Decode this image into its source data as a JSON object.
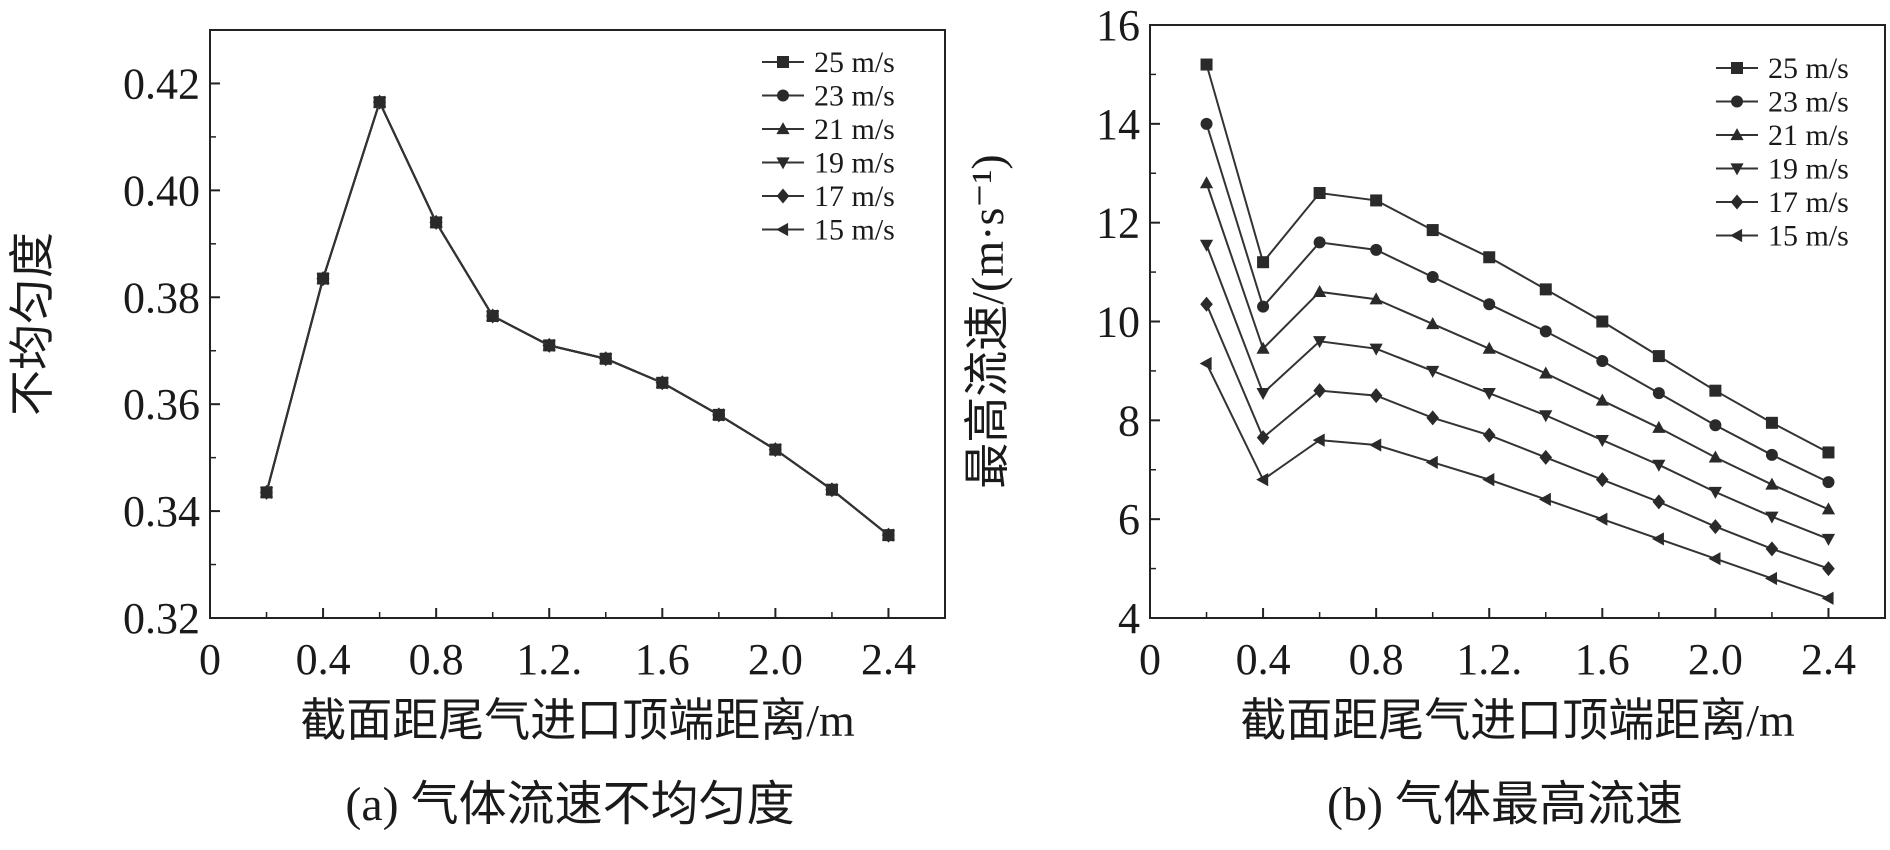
{
  "figure": {
    "caption_a": "(a) 气体流速不均匀度",
    "caption_b": "(b) 气体最高流速"
  },
  "chart_data": [
    {
      "type": "line",
      "id": "a",
      "xlabel": "截面距尾气进口顶端距离/m",
      "ylabel": "不均匀度",
      "xlim": [
        0,
        2.6
      ],
      "ylim": [
        0.32,
        0.43
      ],
      "xticks": [
        0,
        0.4,
        0.8,
        1.2,
        1.6,
        2.0,
        2.4
      ],
      "xtick_labels": [
        "0",
        "0.4",
        "0.8",
        "1.2.",
        "1.6",
        "2.0",
        "2.4"
      ],
      "yticks": [
        0.32,
        0.34,
        0.36,
        0.38,
        0.4,
        0.42
      ],
      "ytick_labels": [
        "0.32",
        "0.34",
        "0.36",
        "0.38",
        "0.40",
        "0.42"
      ],
      "grid": false,
      "legend_position": "top-right",
      "x": [
        0.2,
        0.4,
        0.6,
        0.8,
        1.0,
        1.2,
        1.4,
        1.6,
        1.8,
        2.0,
        2.2,
        2.4
      ],
      "series": [
        {
          "name": "25 m/s",
          "marker": "square",
          "values": [
            0.3435,
            0.3835,
            0.4165,
            0.394,
            0.3765,
            0.371,
            0.3685,
            0.364,
            0.358,
            0.3515,
            0.344,
            0.3355
          ]
        },
        {
          "name": "23 m/s",
          "marker": "circle",
          "values": [
            0.3435,
            0.3835,
            0.4165,
            0.394,
            0.3765,
            0.371,
            0.3685,
            0.364,
            0.358,
            0.3515,
            0.344,
            0.3355
          ]
        },
        {
          "name": "21 m/s",
          "marker": "triangle-up",
          "values": [
            0.3435,
            0.3835,
            0.4165,
            0.394,
            0.3765,
            0.371,
            0.3685,
            0.364,
            0.358,
            0.3515,
            0.344,
            0.3355
          ]
        },
        {
          "name": "19 m/s",
          "marker": "triangle-down",
          "values": [
            0.3435,
            0.3835,
            0.4165,
            0.394,
            0.3765,
            0.371,
            0.3685,
            0.364,
            0.358,
            0.3515,
            0.344,
            0.3355
          ]
        },
        {
          "name": "17 m/s",
          "marker": "diamond",
          "values": [
            0.3435,
            0.3835,
            0.4165,
            0.394,
            0.3765,
            0.371,
            0.3685,
            0.364,
            0.358,
            0.3515,
            0.344,
            0.3355
          ]
        },
        {
          "name": "15 m/s",
          "marker": "triangle-left",
          "values": [
            0.3435,
            0.3835,
            0.4165,
            0.394,
            0.3765,
            0.371,
            0.3685,
            0.364,
            0.358,
            0.3515,
            0.344,
            0.3355
          ]
        }
      ]
    },
    {
      "type": "line",
      "id": "b",
      "xlabel": "截面距尾气进口顶端距离/m",
      "ylabel": "最高流速/(m·s⁻¹)",
      "xlim": [
        0,
        2.6
      ],
      "ylim": [
        4,
        16
      ],
      "xticks": [
        0,
        0.4,
        0.8,
        1.2,
        1.6,
        2.0,
        2.4
      ],
      "xtick_labels": [
        "0",
        "0.4",
        "0.8",
        "1.2.",
        "1.6",
        "2.0",
        "2.4"
      ],
      "yticks": [
        4,
        6,
        8,
        10,
        12,
        14,
        16
      ],
      "ytick_labels": [
        "4",
        "6",
        "8",
        "10",
        "12",
        "14",
        "16"
      ],
      "grid": false,
      "legend_position": "top-right",
      "x": [
        0.2,
        0.4,
        0.6,
        0.8,
        1.0,
        1.2,
        1.4,
        1.6,
        1.8,
        2.0,
        2.2,
        2.4
      ],
      "series": [
        {
          "name": "25 m/s",
          "marker": "square",
          "values": [
            15.2,
            11.2,
            12.6,
            12.45,
            11.85,
            11.3,
            10.65,
            10.0,
            9.3,
            8.6,
            7.95,
            7.35
          ]
        },
        {
          "name": "23 m/s",
          "marker": "circle",
          "values": [
            14.0,
            10.3,
            11.6,
            11.45,
            10.9,
            10.35,
            9.8,
            9.2,
            8.55,
            7.9,
            7.3,
            6.75
          ]
        },
        {
          "name": "21 m/s",
          "marker": "triangle-up",
          "values": [
            12.8,
            9.45,
            10.6,
            10.45,
            9.95,
            9.45,
            8.95,
            8.4,
            7.85,
            7.25,
            6.7,
            6.2
          ]
        },
        {
          "name": "19 m/s",
          "marker": "triangle-down",
          "values": [
            11.55,
            8.55,
            9.6,
            9.45,
            9.0,
            8.55,
            8.1,
            7.6,
            7.1,
            6.55,
            6.05,
            5.6
          ]
        },
        {
          "name": "17 m/s",
          "marker": "diamond",
          "values": [
            10.35,
            7.65,
            8.6,
            8.5,
            8.05,
            7.7,
            7.25,
            6.8,
            6.35,
            5.85,
            5.4,
            5.0
          ]
        },
        {
          "name": "15 m/s",
          "marker": "triangle-left",
          "values": [
            9.15,
            6.8,
            7.6,
            7.5,
            7.15,
            6.8,
            6.4,
            6.0,
            5.6,
            5.2,
            4.8,
            4.4
          ]
        }
      ]
    }
  ]
}
